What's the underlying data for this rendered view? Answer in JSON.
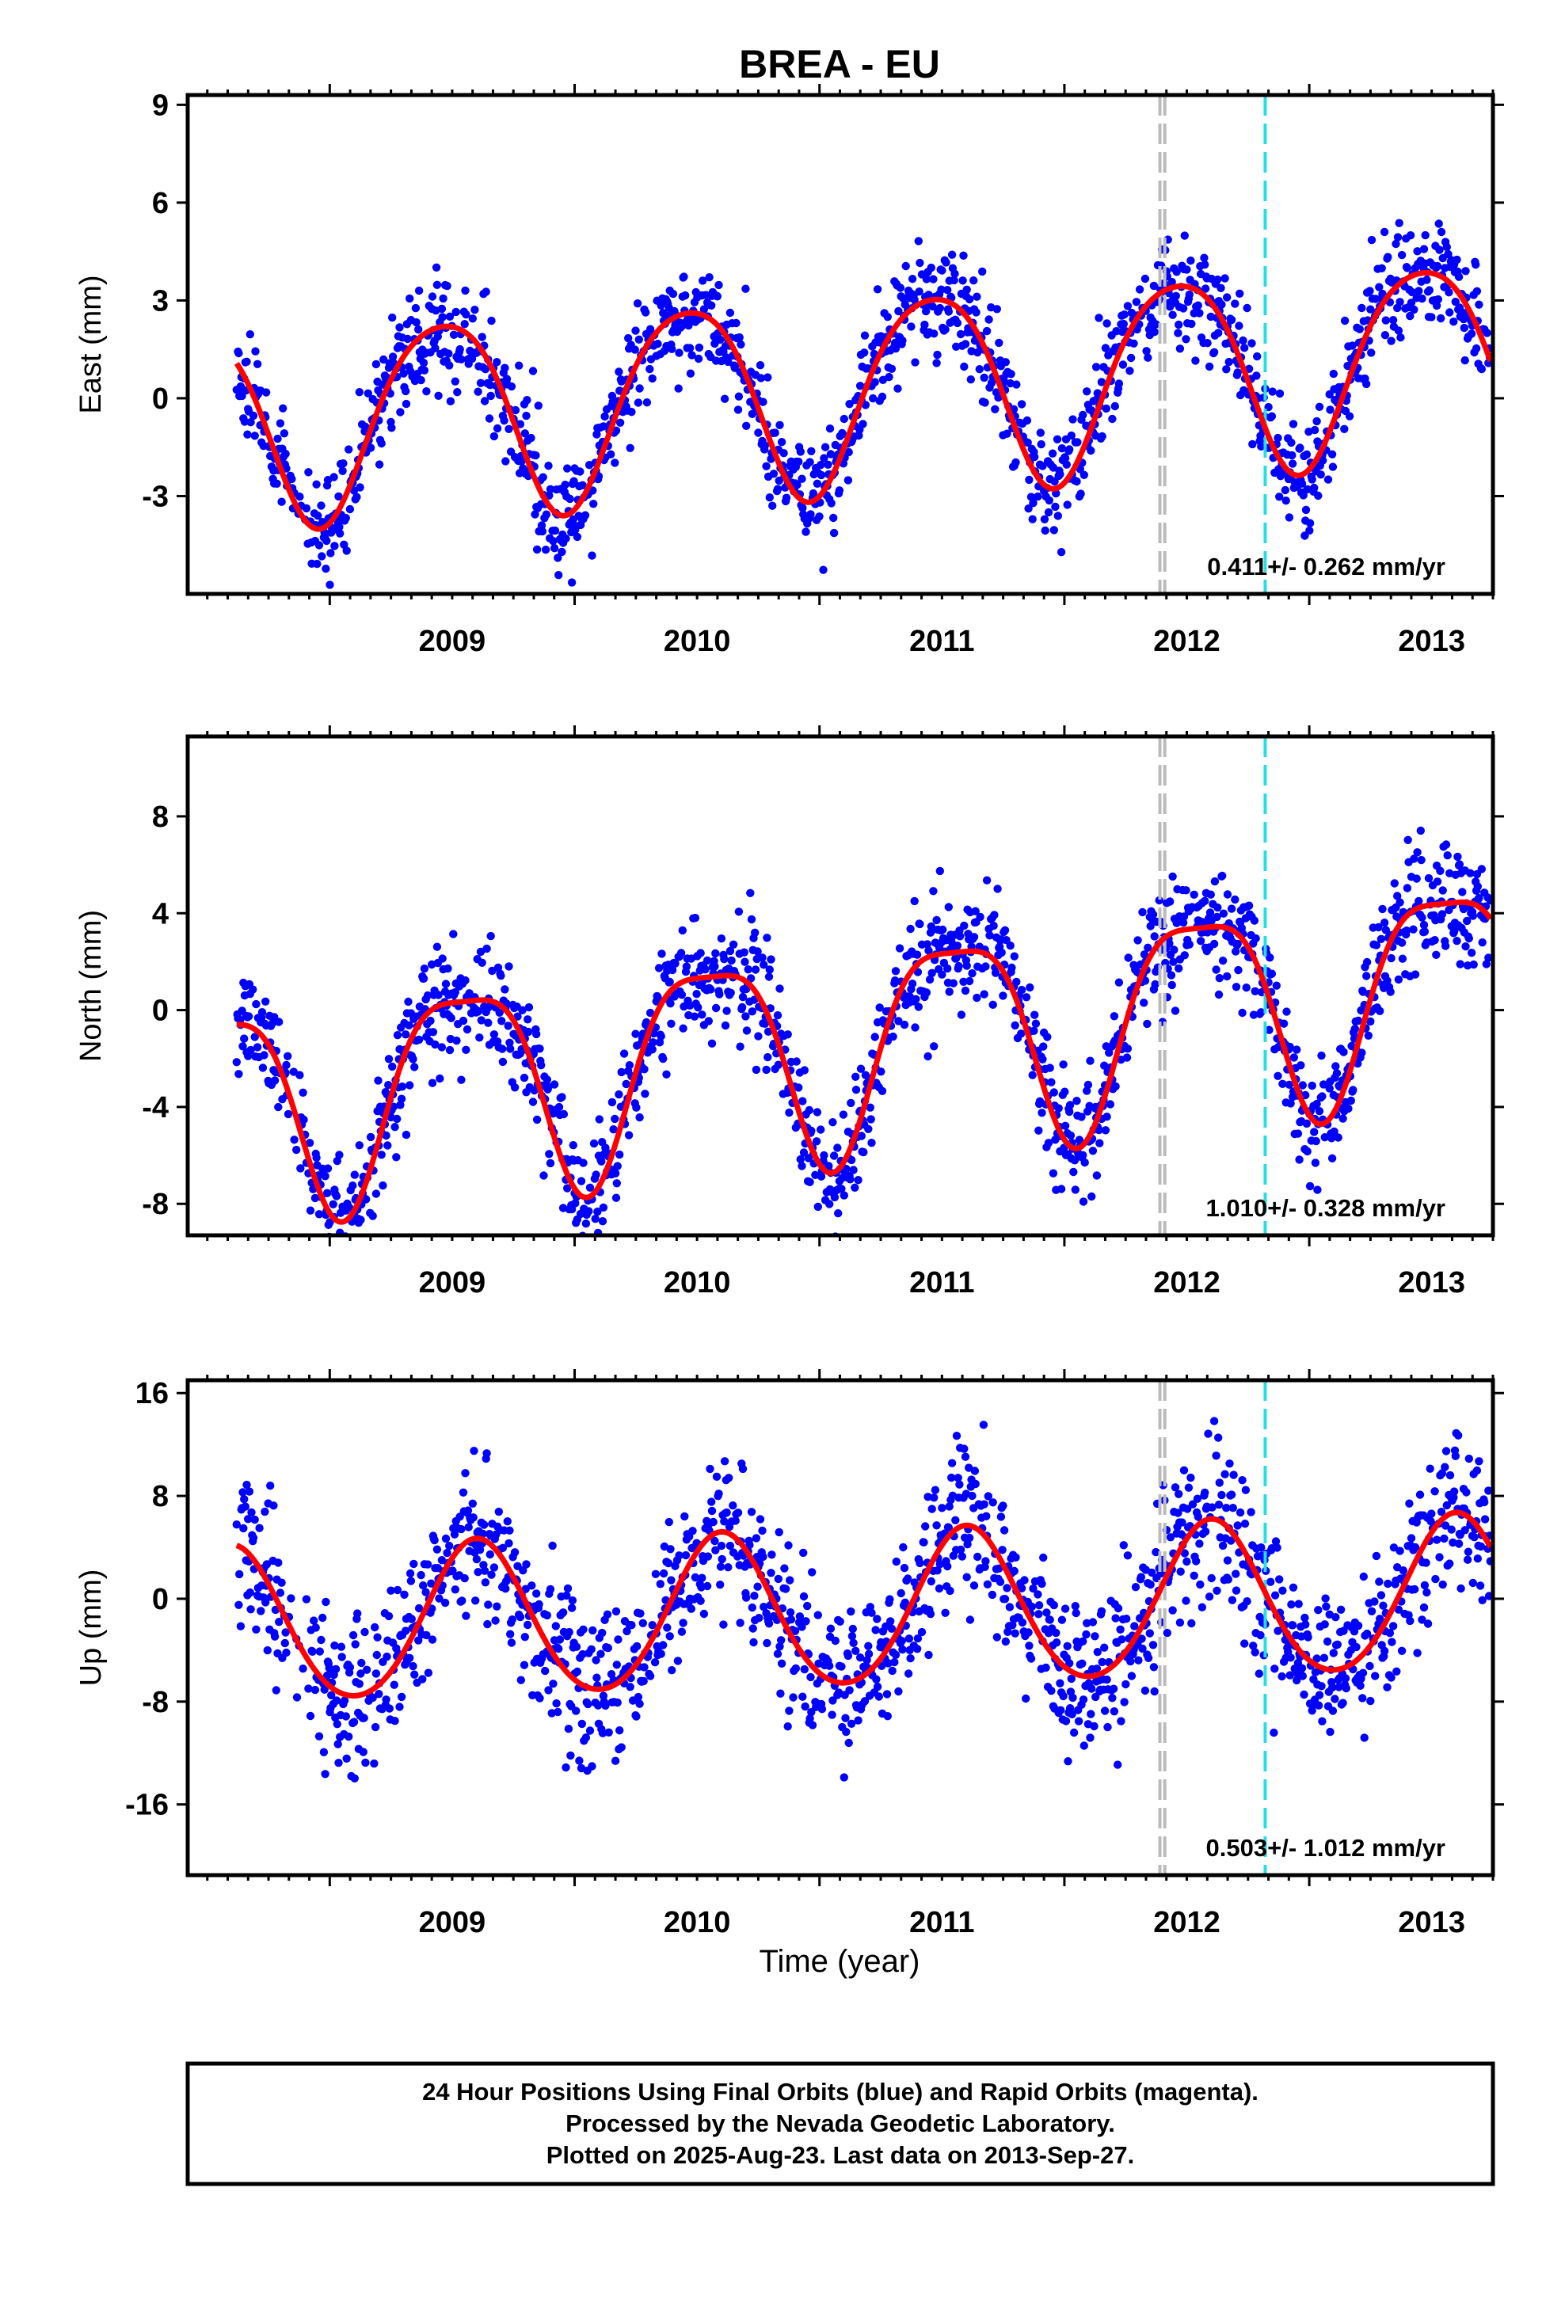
{
  "title": "BREA - EU",
  "xlabel": "Time (year)",
  "footer": {
    "line1": "24 Hour Positions Using Final Orbits (blue) and Rapid Orbits (magenta).",
    "line2": "Processed by the Nevada Geodetic Laboratory.",
    "line3": "Plotted on 2025-Aug-23. Last data on 2013-Sep-27."
  },
  "colors": {
    "points": "#0000ff",
    "fit": "#ff0000",
    "equipment_change": "#bbbbbb",
    "event_line": "#22e0e8",
    "frame": "#000000"
  },
  "chart_data": [
    {
      "type": "scatter",
      "component": "east",
      "ylabel": "East (mm)",
      "ylim": [
        -6,
        9.3
      ],
      "xlim": [
        2008.42,
        2013.75
      ],
      "x_ticks": [
        "2009",
        "2010",
        "2011",
        "2012",
        "2013"
      ],
      "y_ticks": [
        9,
        6,
        3,
        0,
        -3
      ],
      "rate_label": "0.411+/- 0.262 mm/yr",
      "data_start": 2008.62,
      "data_end": 2013.74,
      "fit_offset": 0.3,
      "fit_rate": 0.411,
      "annual_amplitude": 3.0,
      "annual_peak": 0.46,
      "semiannual_amplitude": 0.4,
      "semiannual_peak": 0.2,
      "scatter": 0.85,
      "seed": 11,
      "equipment_changes": [
        2012.39,
        2012.41
      ],
      "event_lines": [
        2012.82
      ]
    },
    {
      "type": "scatter",
      "component": "north",
      "ylabel": "North (mm)",
      "ylim": [
        -9.3,
        11.3
      ],
      "xlim": [
        2008.42,
        2013.75
      ],
      "x_ticks": [
        "2009",
        "2010",
        "2011",
        "2012",
        "2013"
      ],
      "y_ticks": [
        8,
        4,
        0,
        -4,
        -8
      ],
      "rate_label": "1.010+/- 0.328 mm/yr",
      "data_start": 2008.62,
      "data_end": 2013.74,
      "fit_offset": -1.2,
      "fit_rate": 1.01,
      "annual_amplitude": 4.3,
      "annual_peak": 0.55,
      "semiannual_amplitude": 1.1,
      "semiannual_peak": 0.3,
      "scatter": 1.2,
      "seed": 23,
      "equipment_changes": [
        2012.39,
        2012.41
      ],
      "event_lines": [
        2012.82
      ]
    },
    {
      "type": "scatter",
      "component": "up",
      "ylabel": "Up (mm)",
      "ylim": [
        -21.5,
        17
      ],
      "xlim": [
        2008.42,
        2013.75
      ],
      "x_ticks": [
        "2009",
        "2010",
        "2011",
        "2012",
        "2013"
      ],
      "y_ticks": [
        16,
        8,
        0,
        -8,
        -16
      ],
      "rate_label": "0.503+/- 1.012 mm/yr",
      "data_start": 2008.62,
      "data_end": 2013.74,
      "fit_offset": -1.0,
      "fit_rate": 0.503,
      "annual_amplitude": 6.0,
      "annual_peak": 0.6,
      "semiannual_amplitude": 0.5,
      "semiannual_peak": 0.1,
      "scatter": 3.0,
      "seed": 37,
      "equipment_changes": [
        2012.39,
        2012.41
      ],
      "event_lines": [
        2012.82
      ]
    }
  ]
}
